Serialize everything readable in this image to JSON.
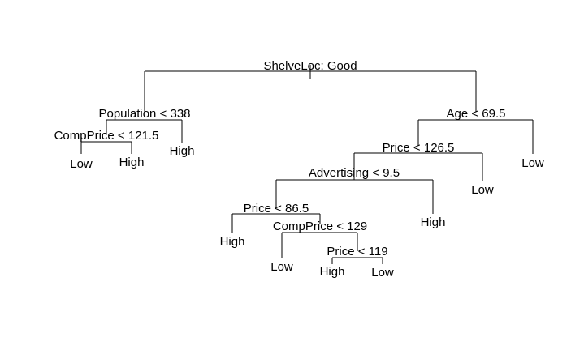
{
  "tree": {
    "line_color": "#000000",
    "text_color": "#000000",
    "background": "#ffffff",
    "nodes": [
      {
        "id": "n1",
        "label": "ShelveLoc: Good"
      },
      {
        "id": "n2",
        "label": "Population < 338"
      },
      {
        "id": "n3",
        "label": "CompPrice < 121.5"
      },
      {
        "id": "n4",
        "label": "Low"
      },
      {
        "id": "n5",
        "label": "High"
      },
      {
        "id": "n6",
        "label": "High"
      },
      {
        "id": "n7",
        "label": "Age < 69.5"
      },
      {
        "id": "n8",
        "label": "Price < 126.5"
      },
      {
        "id": "n9",
        "label": "Advertising < 9.5"
      },
      {
        "id": "n10",
        "label": "Price < 86.5"
      },
      {
        "id": "n11",
        "label": "High"
      },
      {
        "id": "n12",
        "label": "CompPrice < 129"
      },
      {
        "id": "n13",
        "label": "Low"
      },
      {
        "id": "n14",
        "label": "Price < 119"
      },
      {
        "id": "n15",
        "label": "High"
      },
      {
        "id": "n16",
        "label": "Low"
      },
      {
        "id": "n17",
        "label": "High"
      },
      {
        "id": "n18",
        "label": "Low"
      },
      {
        "id": "n19",
        "label": "Low"
      }
    ]
  }
}
